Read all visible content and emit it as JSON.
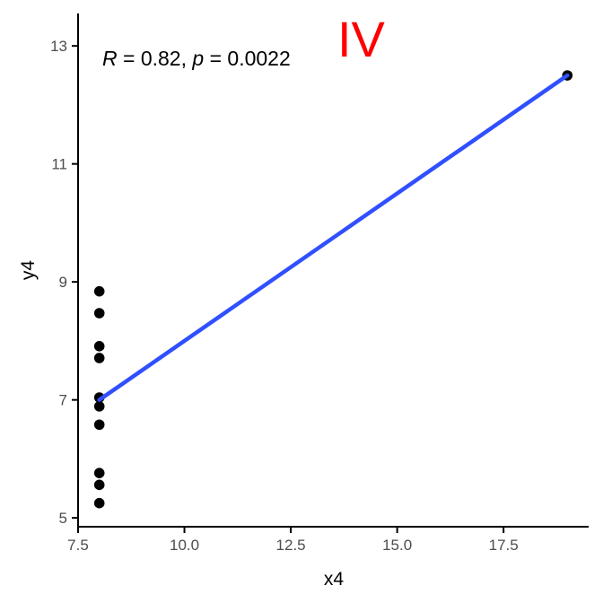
{
  "chart_data": {
    "type": "scatter",
    "title": "",
    "panel_label": "IV",
    "xlabel": "x4",
    "ylabel": "y4",
    "xlim": [
      7.5,
      19.5
    ],
    "ylim": [
      4.85,
      13.55
    ],
    "x_ticks": [
      7.5,
      10.0,
      12.5,
      15.0,
      17.5
    ],
    "x_tick_labels": [
      "7.5",
      "10.0",
      "12.5",
      "15.0",
      "17.5"
    ],
    "y_ticks": [
      5,
      7,
      9,
      11,
      13
    ],
    "y_tick_labels": [
      "5",
      "7",
      "9",
      "11",
      "13"
    ],
    "grid": false,
    "annotation": {
      "r_symbol": "R",
      "r_text": " = 0.82, ",
      "p_symbol": "p",
      "p_text": " = 0.0022"
    },
    "points": [
      {
        "x": 8,
        "y": 6.58
      },
      {
        "x": 8,
        "y": 5.76
      },
      {
        "x": 8,
        "y": 7.71
      },
      {
        "x": 8,
        "y": 8.84
      },
      {
        "x": 8,
        "y": 8.47
      },
      {
        "x": 8,
        "y": 7.04
      },
      {
        "x": 8,
        "y": 5.25
      },
      {
        "x": 19,
        "y": 12.5
      },
      {
        "x": 8,
        "y": 5.56
      },
      {
        "x": 8,
        "y": 7.91
      },
      {
        "x": 8,
        "y": 6.89
      }
    ],
    "fit_line": {
      "x": [
        8,
        19
      ],
      "y": [
        7.0,
        12.5
      ]
    },
    "colors": {
      "points": "#000000",
      "fit_line": "#3050ff",
      "panel_label": "#ff0000"
    }
  }
}
